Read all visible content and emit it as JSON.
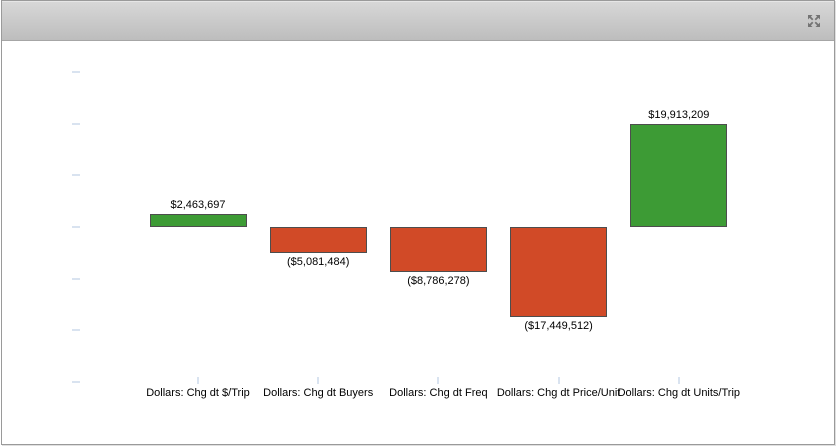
{
  "window": {
    "titlebar": {
      "icon": "expand-icon"
    }
  },
  "chart_data": {
    "type": "bar",
    "title": "",
    "categories": [
      "Dollars: Chg dt $/Trip",
      "Dollars: Chg dt Buyers",
      "Dollars: Chg dt Freq",
      "Dollars: Chg dt Price/Unit",
      "Dollars: Chg dt Units/Trip"
    ],
    "values": [
      2463697,
      -5081484,
      -8786278,
      -17449512,
      19913209
    ],
    "value_labels": [
      "$2,463,697",
      "($5,081,484)",
      "($8,786,278)",
      "($17,449,512)",
      "$19,913,209"
    ],
    "positive_color": "#3d9b35",
    "negative_color": "#d14a27",
    "bar_border_color": "#4d4d4d",
    "axis_tick_color": "#d9e3f0",
    "y_axis": {
      "tick_values": [
        30000000,
        20000000,
        10000000,
        0,
        -10000000,
        -20000000,
        -30000000
      ],
      "tick_labels_visible": false,
      "gridlines": false
    },
    "x_axis": {
      "tick_marks_visible": true,
      "labels_visible": true
    },
    "legend_position": "none"
  }
}
